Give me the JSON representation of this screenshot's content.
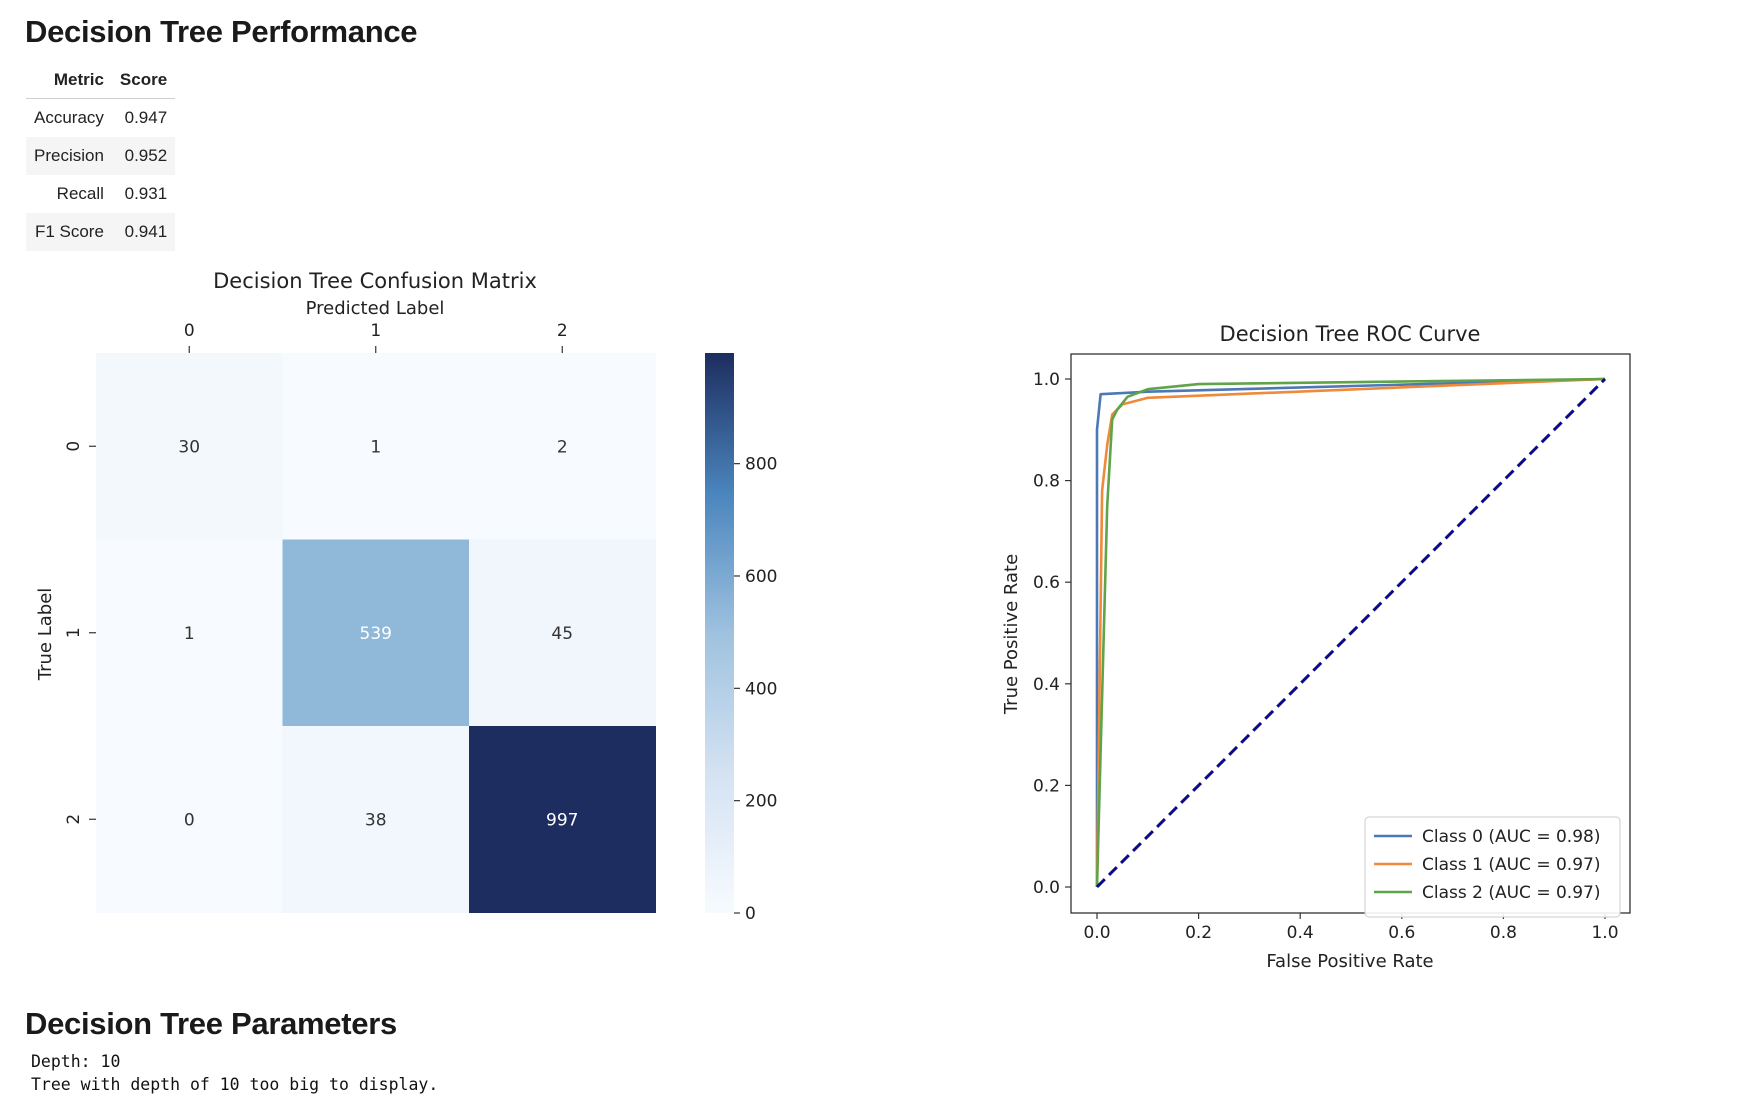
{
  "performance": {
    "title": "Decision Tree Performance",
    "table": {
      "headers": [
        "Metric",
        "Score"
      ],
      "rows": [
        {
          "metric": "Accuracy",
          "score": "0.947"
        },
        {
          "metric": "Precision",
          "score": "0.952"
        },
        {
          "metric": "Recall",
          "score": "0.931"
        },
        {
          "metric": "F1 Score",
          "score": "0.941"
        }
      ]
    }
  },
  "chart_data": [
    {
      "type": "heatmap",
      "title": "Decision Tree Confusion Matrix",
      "xlabel": "Predicted Label",
      "ylabel": "True Label",
      "x_categories": [
        "0",
        "1",
        "2"
      ],
      "y_categories": [
        "0",
        "1",
        "2"
      ],
      "values": [
        [
          30,
          1,
          2
        ],
        [
          1,
          539,
          45
        ],
        [
          0,
          38,
          997
        ]
      ],
      "colorbar": {
        "ticks": [
          0,
          200,
          400,
          600,
          800
        ],
        "range": [
          0,
          997
        ],
        "colormap": "Blues"
      },
      "colors": {
        "low": "#f7fbff",
        "high": "#1d2d5f"
      }
    },
    {
      "type": "line",
      "title": "Decision Tree ROC Curve",
      "xlabel": "False Positive Rate",
      "ylabel": "True Positive Rate",
      "xlim": [
        0.0,
        1.0
      ],
      "ylim": [
        0.0,
        1.0
      ],
      "xticks": [
        "0.0",
        "0.2",
        "0.4",
        "0.6",
        "0.8",
        "1.0"
      ],
      "yticks": [
        "0.0",
        "0.2",
        "0.4",
        "0.6",
        "0.8",
        "1.0"
      ],
      "legend_position": "bottom-right",
      "series": [
        {
          "name": "Class 0 (AUC = 0.98)",
          "color": "#4c78b5",
          "points": [
            [
              0.0,
              0.0
            ],
            [
              0.0,
              0.9
            ],
            [
              0.007,
              0.97
            ],
            [
              0.1,
              0.975
            ],
            [
              1.0,
              1.0
            ]
          ]
        },
        {
          "name": "Class 1 (AUC = 0.97)",
          "color": "#ef8a3a",
          "points": [
            [
              0.0,
              0.0
            ],
            [
              0.01,
              0.78
            ],
            [
              0.02,
              0.87
            ],
            [
              0.03,
              0.93
            ],
            [
              0.05,
              0.95
            ],
            [
              0.1,
              0.963
            ],
            [
              1.0,
              1.0
            ]
          ]
        },
        {
          "name": "Class 2 (AUC = 0.97)",
          "color": "#5fa34a",
          "points": [
            [
              0.0,
              0.0
            ],
            [
              0.02,
              0.75
            ],
            [
              0.03,
              0.92
            ],
            [
              0.04,
              0.94
            ],
            [
              0.06,
              0.965
            ],
            [
              0.1,
              0.98
            ],
            [
              0.2,
              0.99
            ],
            [
              1.0,
              1.0
            ]
          ]
        },
        {
          "name": "",
          "color": "#0a0a8a",
          "style": "dashed",
          "points": [
            [
              0.0,
              0.0
            ],
            [
              1.0,
              1.0
            ]
          ]
        }
      ]
    }
  ],
  "parameters": {
    "title": "Decision Tree Parameters",
    "lines": [
      "Depth: 10",
      "Tree with depth of 10 too big to display."
    ]
  }
}
